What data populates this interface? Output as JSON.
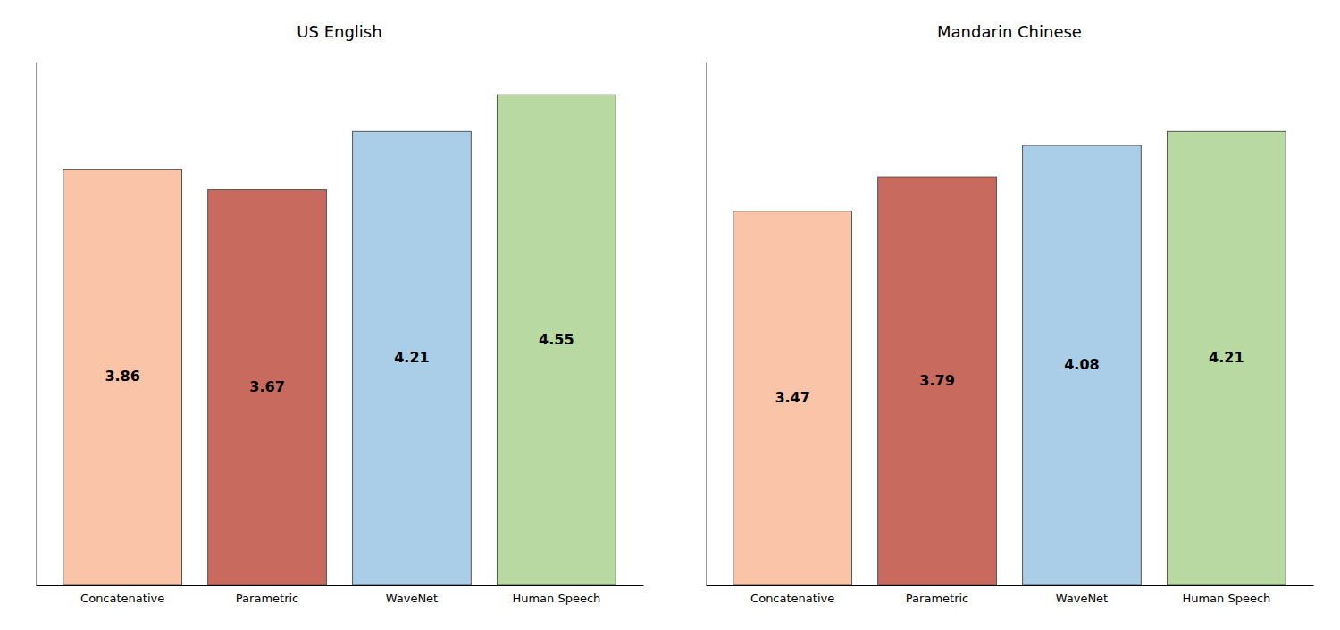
{
  "chart_data": [
    {
      "type": "bar",
      "title": "US English",
      "categories": [
        "Concatenative",
        "Parametric",
        "WaveNet",
        "Human Speech"
      ],
      "values": [
        3.86,
        3.67,
        4.21,
        4.55
      ],
      "colors": [
        "#F9C4A8",
        "#C96A5E",
        "#AACDE8",
        "#B8D9A2"
      ],
      "ylim": [
        0,
        4.85
      ],
      "grid": false,
      "data_labels": true,
      "tick_labels": "x"
    },
    {
      "type": "bar",
      "title": "Mandarin Chinese",
      "categories": [
        "Concatenative",
        "Parametric",
        "WaveNet",
        "Human Speech"
      ],
      "values": [
        3.47,
        3.79,
        4.08,
        4.21
      ],
      "colors": [
        "#F9C4A8",
        "#C96A5E",
        "#AACDE8",
        "#B8D9A2"
      ],
      "ylim": [
        0,
        4.85
      ],
      "grid": false,
      "data_labels": true,
      "tick_labels": "x"
    }
  ]
}
